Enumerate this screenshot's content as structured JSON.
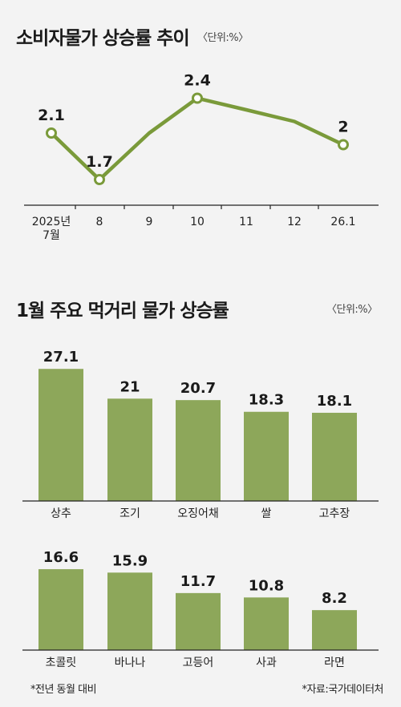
{
  "line_chart": {
    "title": "소비자물가 상승률 추이",
    "unit": "〈단위:%〉"
  },
  "bar_chart": {
    "title": "1월 주요 먹거리 물가 상승률",
    "unit": "〈단위:%〉"
  },
  "footer": {
    "left_note": "*전년 동월 대비",
    "right_note": "*자료:국가데이터처"
  },
  "colors": {
    "line": "#7a9a3a",
    "bar": "#8da75a",
    "background": "#f3f3f3"
  },
  "chart_data": [
    {
      "type": "line",
      "title": "소비자물가 상승률 추이",
      "unit": "%",
      "categories": [
        "2025년\n7월",
        "8",
        "9",
        "10",
        "11",
        "12",
        "26.1"
      ],
      "values": [
        2.1,
        1.7,
        2.1,
        2.4,
        2.3,
        2.2,
        2.0
      ],
      "labeled": [
        true,
        true,
        false,
        true,
        false,
        false,
        true
      ],
      "data_labels": [
        "2.1",
        "1.7",
        "",
        "2.4",
        "",
        "",
        "2"
      ],
      "markers": [
        true,
        true,
        false,
        true,
        false,
        false,
        true
      ],
      "grid": false
    },
    {
      "type": "bar",
      "title": "1월 주요 먹거리 물가 상승률",
      "unit": "%",
      "categories": [
        "상추",
        "조기",
        "오징어채",
        "쌀",
        "고추장"
      ],
      "values": [
        27.1,
        21,
        20.7,
        18.3,
        18.1
      ],
      "data_labels": [
        "27.1",
        "21",
        "20.7",
        "18.3",
        "18.1"
      ]
    },
    {
      "type": "bar",
      "title": "1월 주요 먹거리 물가 상승률",
      "unit": "%",
      "categories": [
        "초콜릿",
        "바나나",
        "고등어",
        "사과",
        "라면"
      ],
      "values": [
        16.6,
        15.9,
        11.7,
        10.8,
        8.2
      ],
      "data_labels": [
        "16.6",
        "15.9",
        "11.7",
        "10.8",
        "8.2"
      ]
    }
  ]
}
